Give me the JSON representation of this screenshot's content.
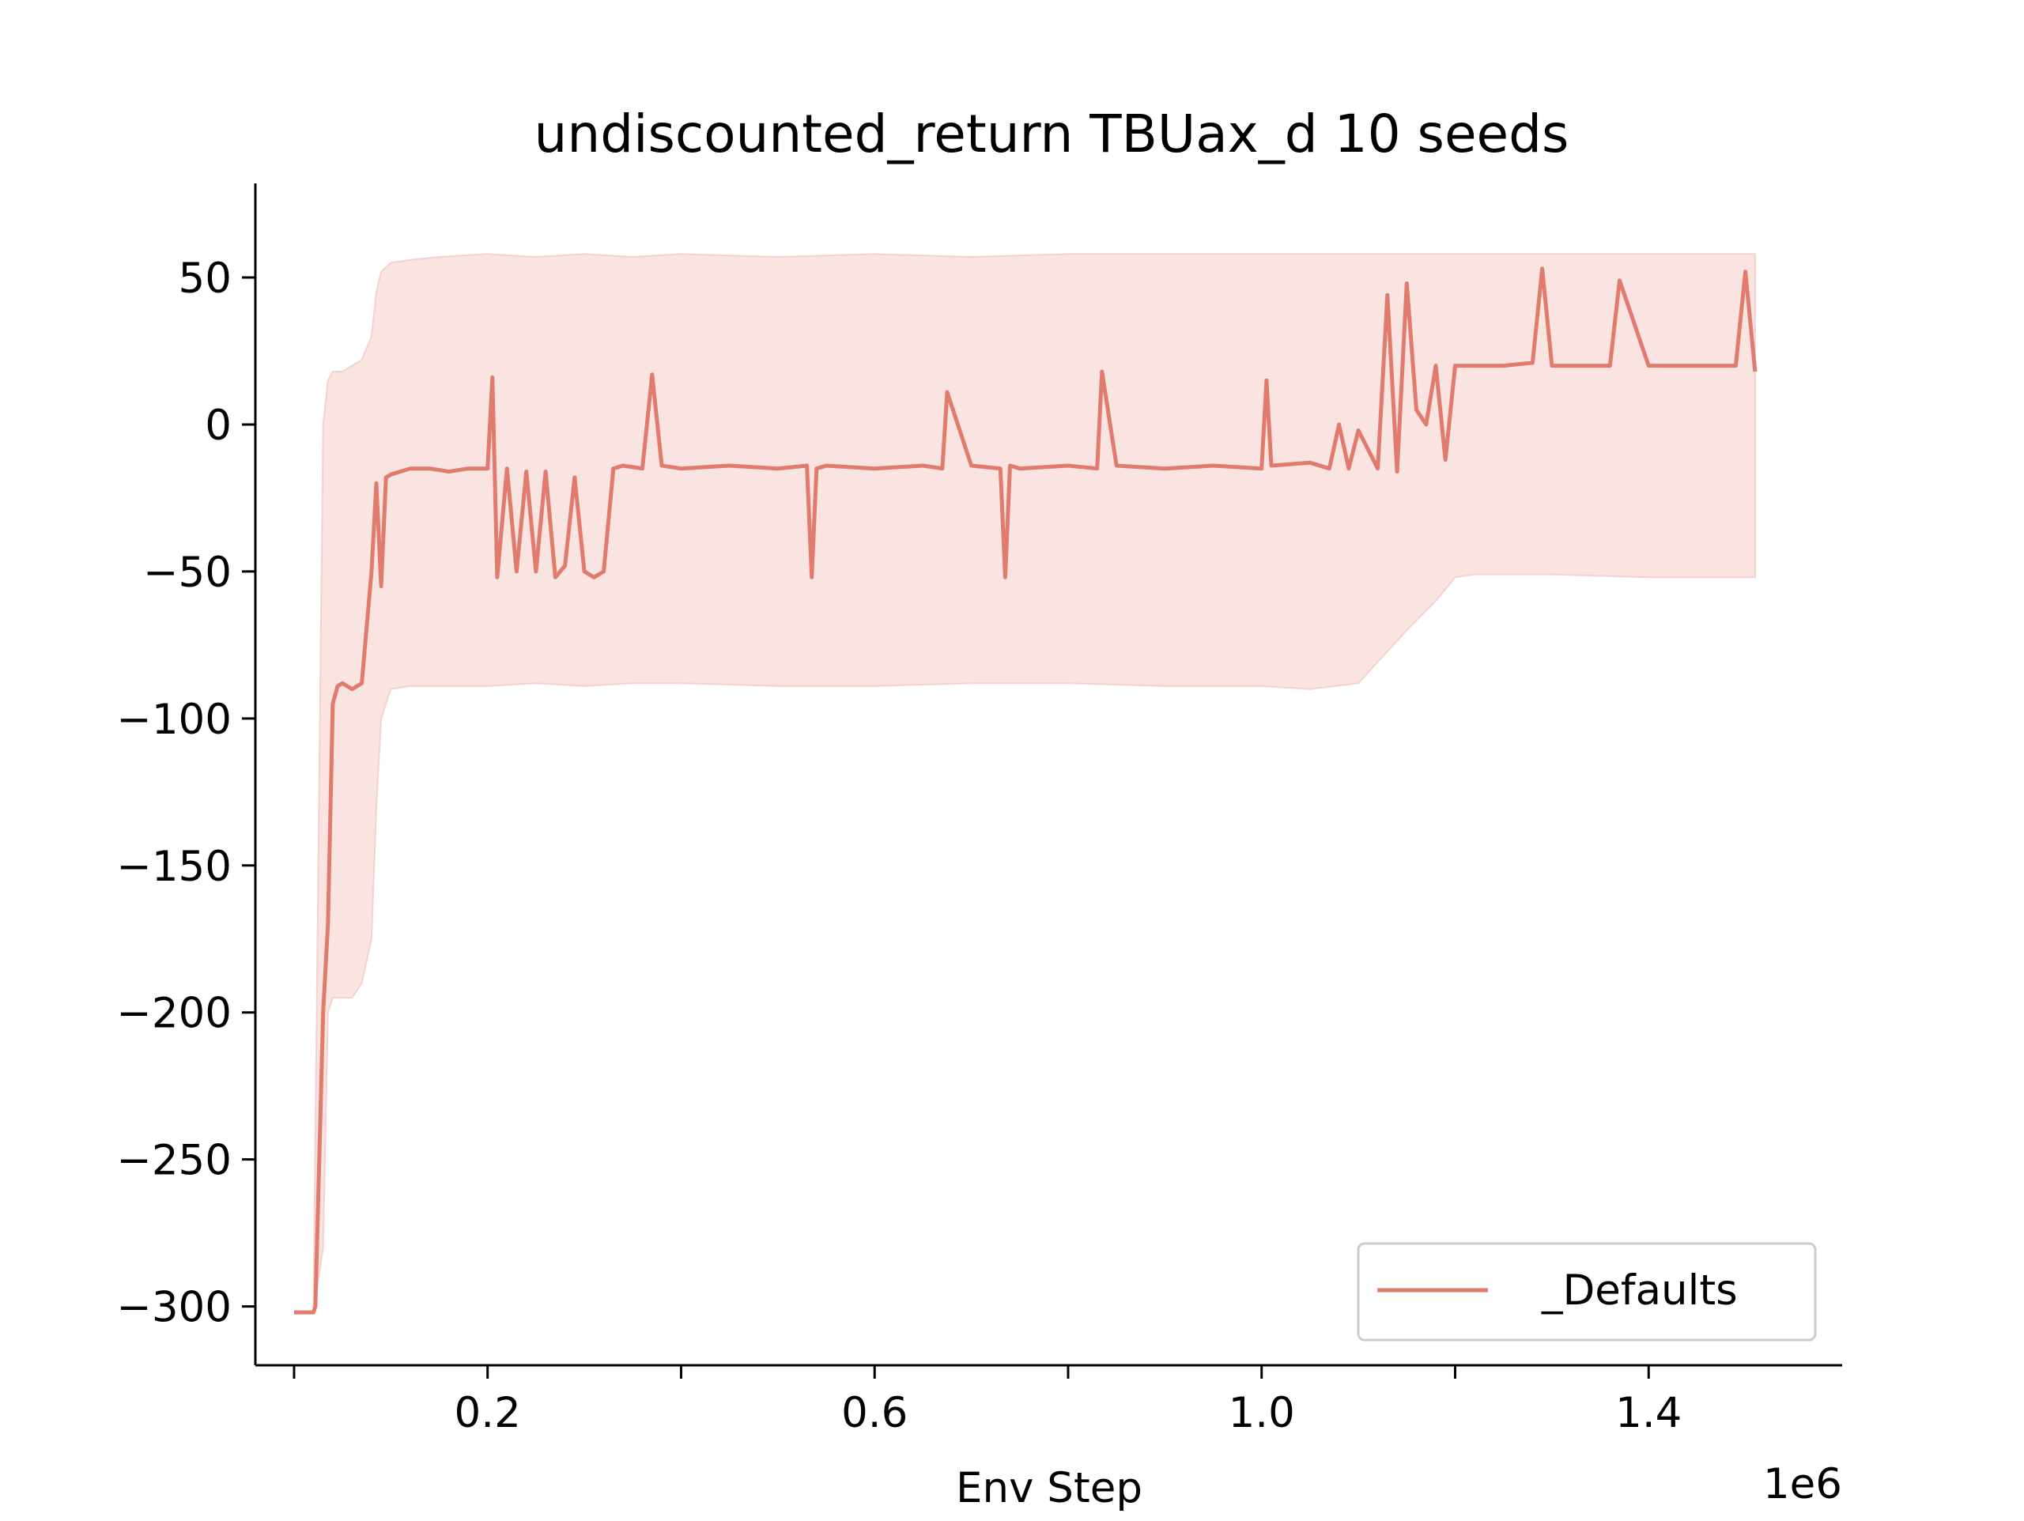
{
  "chart_data": {
    "type": "line",
    "title": "undiscounted_return TBUax_d 10 seeds",
    "xlabel": "Env Step",
    "ylabel": "",
    "x_offset_label": "1e6",
    "xlim": [
      -0.04,
      1.6
    ],
    "ylim": [
      -320,
      82
    ],
    "x_ticks": [
      0.0,
      0.2,
      0.4,
      0.6,
      0.8,
      1.0,
      1.2,
      1.4
    ],
    "x_tick_labels": [
      "",
      "0.2",
      "",
      "0.6",
      "",
      "1.0",
      "",
      "1.4"
    ],
    "y_ticks": [
      -300,
      -250,
      -200,
      -150,
      -100,
      -50,
      0,
      50
    ],
    "y_tick_labels": [
      "−300",
      "−250",
      "−200",
      "−150",
      "−100",
      "−50",
      "0",
      "50"
    ],
    "grid": false,
    "legend_position": "lower-right",
    "colors": {
      "line": "#e07b6e",
      "band": "#f2c4bf"
    },
    "series": [
      {
        "name": "_Defaults",
        "x": [
          0.0,
          0.02,
          0.022,
          0.03,
          0.035,
          0.04,
          0.045,
          0.05,
          0.06,
          0.07,
          0.08,
          0.085,
          0.09,
          0.095,
          0.1,
          0.11,
          0.12,
          0.14,
          0.16,
          0.18,
          0.2,
          0.205,
          0.21,
          0.22,
          0.23,
          0.24,
          0.25,
          0.26,
          0.27,
          0.28,
          0.29,
          0.3,
          0.31,
          0.32,
          0.33,
          0.34,
          0.36,
          0.37,
          0.38,
          0.4,
          0.45,
          0.5,
          0.53,
          0.535,
          0.54,
          0.55,
          0.6,
          0.65,
          0.67,
          0.675,
          0.7,
          0.73,
          0.735,
          0.74,
          0.75,
          0.8,
          0.83,
          0.835,
          0.85,
          0.9,
          0.95,
          1.0,
          1.005,
          1.01,
          1.05,
          1.07,
          1.08,
          1.09,
          1.1,
          1.12,
          1.13,
          1.14,
          1.15,
          1.16,
          1.17,
          1.18,
          1.19,
          1.2,
          1.22,
          1.25,
          1.28,
          1.29,
          1.3,
          1.35,
          1.36,
          1.37,
          1.4,
          1.45,
          1.48,
          1.49,
          1.5,
          1.51
        ],
        "y": [
          -302,
          -302,
          -300,
          -200,
          -170,
          -95,
          -89,
          -88,
          -90,
          -88,
          -50,
          -20,
          -55,
          -18,
          -17,
          -16,
          -15,
          -15,
          -16,
          -15,
          -15,
          16,
          -52,
          -15,
          -50,
          -16,
          -50,
          -16,
          -52,
          -48,
          -18,
          -50,
          -52,
          -50,
          -15,
          -14,
          -15,
          17,
          -14,
          -15,
          -14,
          -15,
          -14,
          -52,
          -15,
          -14,
          -15,
          -14,
          -15,
          11,
          -14,
          -15,
          -52,
          -14,
          -15,
          -14,
          -15,
          18,
          -14,
          -15,
          -14,
          -15,
          15,
          -14,
          -13,
          -15,
          0,
          -15,
          -2,
          -15,
          44,
          -16,
          48,
          5,
          0,
          20,
          -12,
          20,
          20,
          20,
          21,
          53,
          20,
          20,
          20,
          49,
          20,
          20,
          20,
          20,
          52,
          18
        ]
      }
    ],
    "band": {
      "x": [
        0.0,
        0.02,
        0.03,
        0.035,
        0.04,
        0.05,
        0.06,
        0.07,
        0.08,
        0.085,
        0.09,
        0.1,
        0.12,
        0.15,
        0.2,
        0.25,
        0.3,
        0.35,
        0.4,
        0.5,
        0.6,
        0.7,
        0.8,
        0.9,
        1.0,
        1.05,
        1.1,
        1.15,
        1.18,
        1.2,
        1.22,
        1.3,
        1.4,
        1.5,
        1.51
      ],
      "upper": [
        -302,
        -302,
        0,
        15,
        18,
        18,
        20,
        22,
        30,
        45,
        52,
        55,
        56,
        57,
        58,
        57,
        58,
        57,
        58,
        57,
        58,
        57,
        58,
        58,
        58,
        58,
        58,
        58,
        58,
        58,
        58,
        58,
        58,
        58,
        58
      ],
      "lower": [
        -302,
        -302,
        -280,
        -200,
        -195,
        -195,
        -195,
        -190,
        -175,
        -130,
        -100,
        -90,
        -89,
        -89,
        -89,
        -88,
        -89,
        -88,
        -88,
        -89,
        -89,
        -88,
        -88,
        -89,
        -89,
        -90,
        -88,
        -70,
        -60,
        -52,
        -51,
        -51,
        -52,
        -52,
        -52
      ]
    }
  }
}
